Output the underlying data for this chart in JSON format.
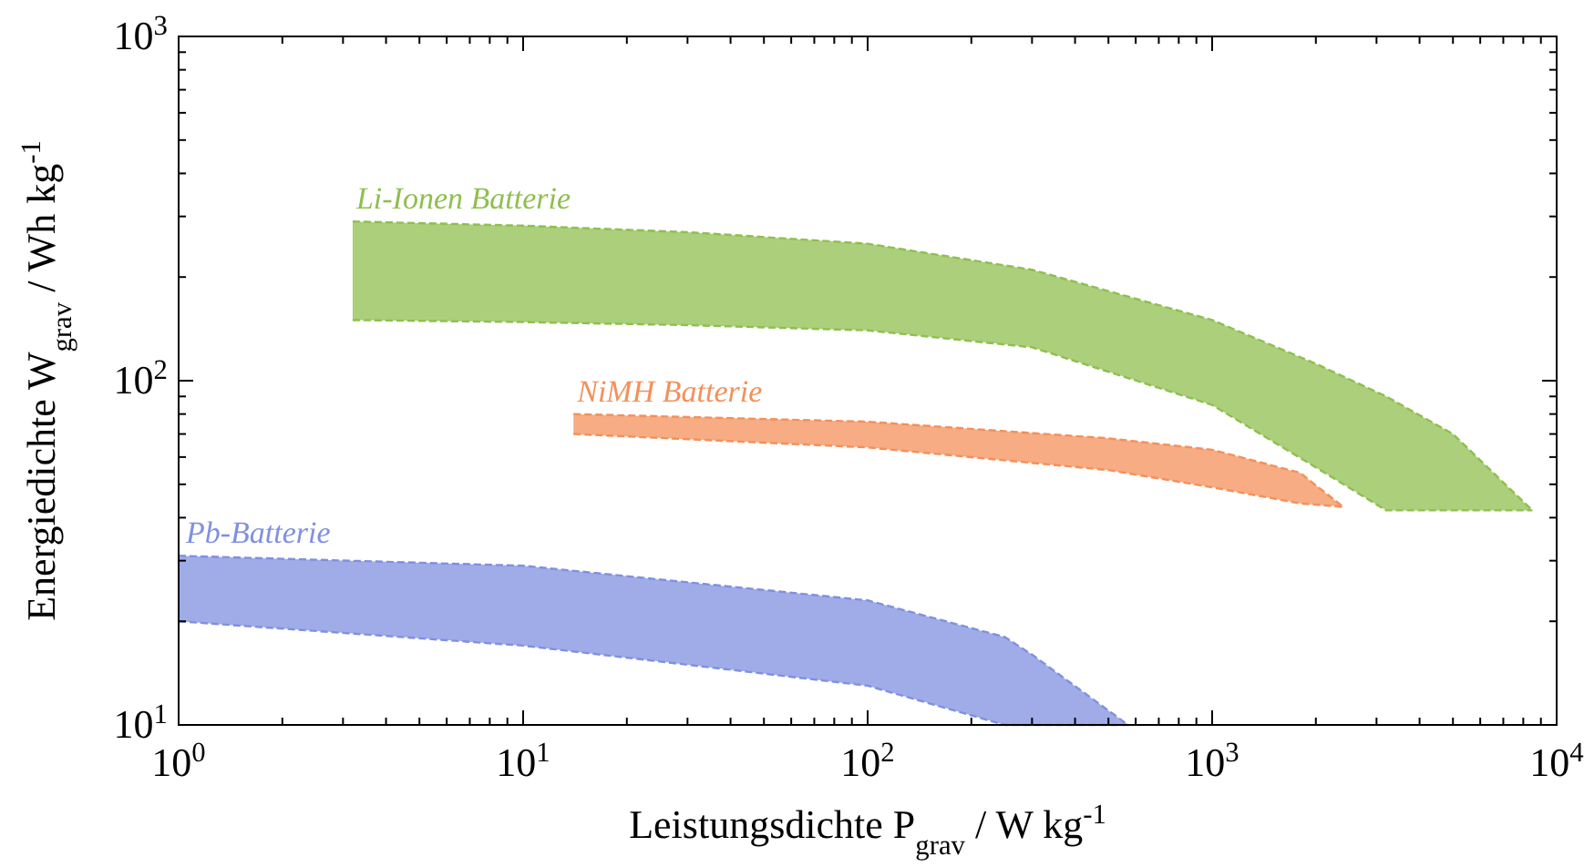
{
  "chart_data": {
    "type": "area",
    "xlabel": "Leistungsdichte P$_{grav}$ / W kg$^{-1}$",
    "ylabel": "Energiedichte W$_{grav}$ / Wh kg$^{-1}$",
    "log": "xy",
    "legend": false,
    "grid": false,
    "line_style": "dashed",
    "xlim": [
      1,
      10000
    ],
    "ylim": [
      10,
      1000
    ],
    "xticks": [
      {
        "value": 1,
        "label": "10$^{0}$"
      },
      {
        "value": 2,
        "label": null
      },
      {
        "value": 3,
        "label": null
      },
      {
        "value": 4,
        "label": null
      },
      {
        "value": 5,
        "label": null
      },
      {
        "value": 6,
        "label": null
      },
      {
        "value": 7,
        "label": null
      },
      {
        "value": 8,
        "label": null
      },
      {
        "value": 9,
        "label": null
      },
      {
        "value": 10,
        "label": "10$^{1}$"
      },
      {
        "value": 20,
        "label": null
      },
      {
        "value": 30,
        "label": null
      },
      {
        "value": 40,
        "label": null
      },
      {
        "value": 50,
        "label": null
      },
      {
        "value": 60,
        "label": null
      },
      {
        "value": 70,
        "label": null
      },
      {
        "value": 80,
        "label": null
      },
      {
        "value": 90,
        "label": null
      },
      {
        "value": 100,
        "label": "10$^{2}$"
      },
      {
        "value": 200,
        "label": null
      },
      {
        "value": 300,
        "label": null
      },
      {
        "value": 400,
        "label": null
      },
      {
        "value": 500,
        "label": null
      },
      {
        "value": 600,
        "label": null
      },
      {
        "value": 700,
        "label": null
      },
      {
        "value": 800,
        "label": null
      },
      {
        "value": 900,
        "label": null
      },
      {
        "value": 1000,
        "label": "10$^{3}$"
      },
      {
        "value": 2000,
        "label": null
      },
      {
        "value": 3000,
        "label": null
      },
      {
        "value": 4000,
        "label": null
      },
      {
        "value": 5000,
        "label": null
      },
      {
        "value": 6000,
        "label": null
      },
      {
        "value": 7000,
        "label": null
      },
      {
        "value": 8000,
        "label": null
      },
      {
        "value": 9000,
        "label": null
      },
      {
        "value": 10000,
        "label": "10$^{4}$"
      }
    ],
    "yticks": [
      {
        "value": 10,
        "label": "10$^{1}$"
      },
      {
        "value": 20,
        "label": null
      },
      {
        "value": 30,
        "label": null
      },
      {
        "value": 40,
        "label": null
      },
      {
        "value": 50,
        "label": null
      },
      {
        "value": 60,
        "label": null
      },
      {
        "value": 70,
        "label": null
      },
      {
        "value": 80,
        "label": null
      },
      {
        "value": 90,
        "label": null
      },
      {
        "value": 100,
        "label": "10$^{2}$"
      },
      {
        "value": 200,
        "label": null
      },
      {
        "value": 300,
        "label": null
      },
      {
        "value": 400,
        "label": null
      },
      {
        "value": 500,
        "label": null
      },
      {
        "value": 600,
        "label": null
      },
      {
        "value": 700,
        "label": null
      },
      {
        "value": 800,
        "label": null
      },
      {
        "value": 900,
        "label": null
      },
      {
        "value": 1000,
        "label": "10$^{3}$"
      }
    ],
    "series": [
      {
        "name": "Li-Ionen Batterie",
        "color": "#8fbf4f",
        "x": [
          3.2,
          10,
          30,
          100,
          300,
          1000,
          2000,
          3200,
          5000,
          8500
        ],
        "values": [
          290,
          282,
          270,
          250,
          210,
          150,
          112,
          90,
          70,
          42
        ]
      },
      {
        "type": "line",
        "color": "#8fbf4f",
        "x": [
          3.2,
          10,
          30,
          100,
          300,
          1000,
          2000,
          3200,
          5000,
          8500
        ],
        "values": [
          150,
          148,
          145,
          140,
          125,
          85,
          56,
          42,
          42,
          42
        ]
      },
      {
        "name": "NiMH Batterie",
        "color": "#f4905a",
        "x": [
          14,
          100,
          500,
          1000,
          1800,
          2400
        ],
        "values": [
          80,
          76,
          68,
          63,
          54,
          43
        ]
      },
      {
        "type": "line",
        "color": "#f4905a",
        "x": [
          14,
          100,
          500,
          1000,
          1800,
          2400
        ],
        "values": [
          70,
          64,
          55,
          49,
          44,
          43
        ]
      },
      {
        "name": "Pb-Batterie",
        "color": "#8090e0",
        "x": [
          1,
          10,
          100,
          250,
          300,
          570
        ],
        "values": [
          31,
          29,
          23,
          18,
          16,
          10
        ]
      },
      {
        "type": "line",
        "color": "#8090e0",
        "x": [
          1,
          10,
          100,
          250,
          300,
          570
        ],
        "values": [
          20,
          17,
          13,
          10,
          10,
          10
        ]
      }
    ]
  }
}
